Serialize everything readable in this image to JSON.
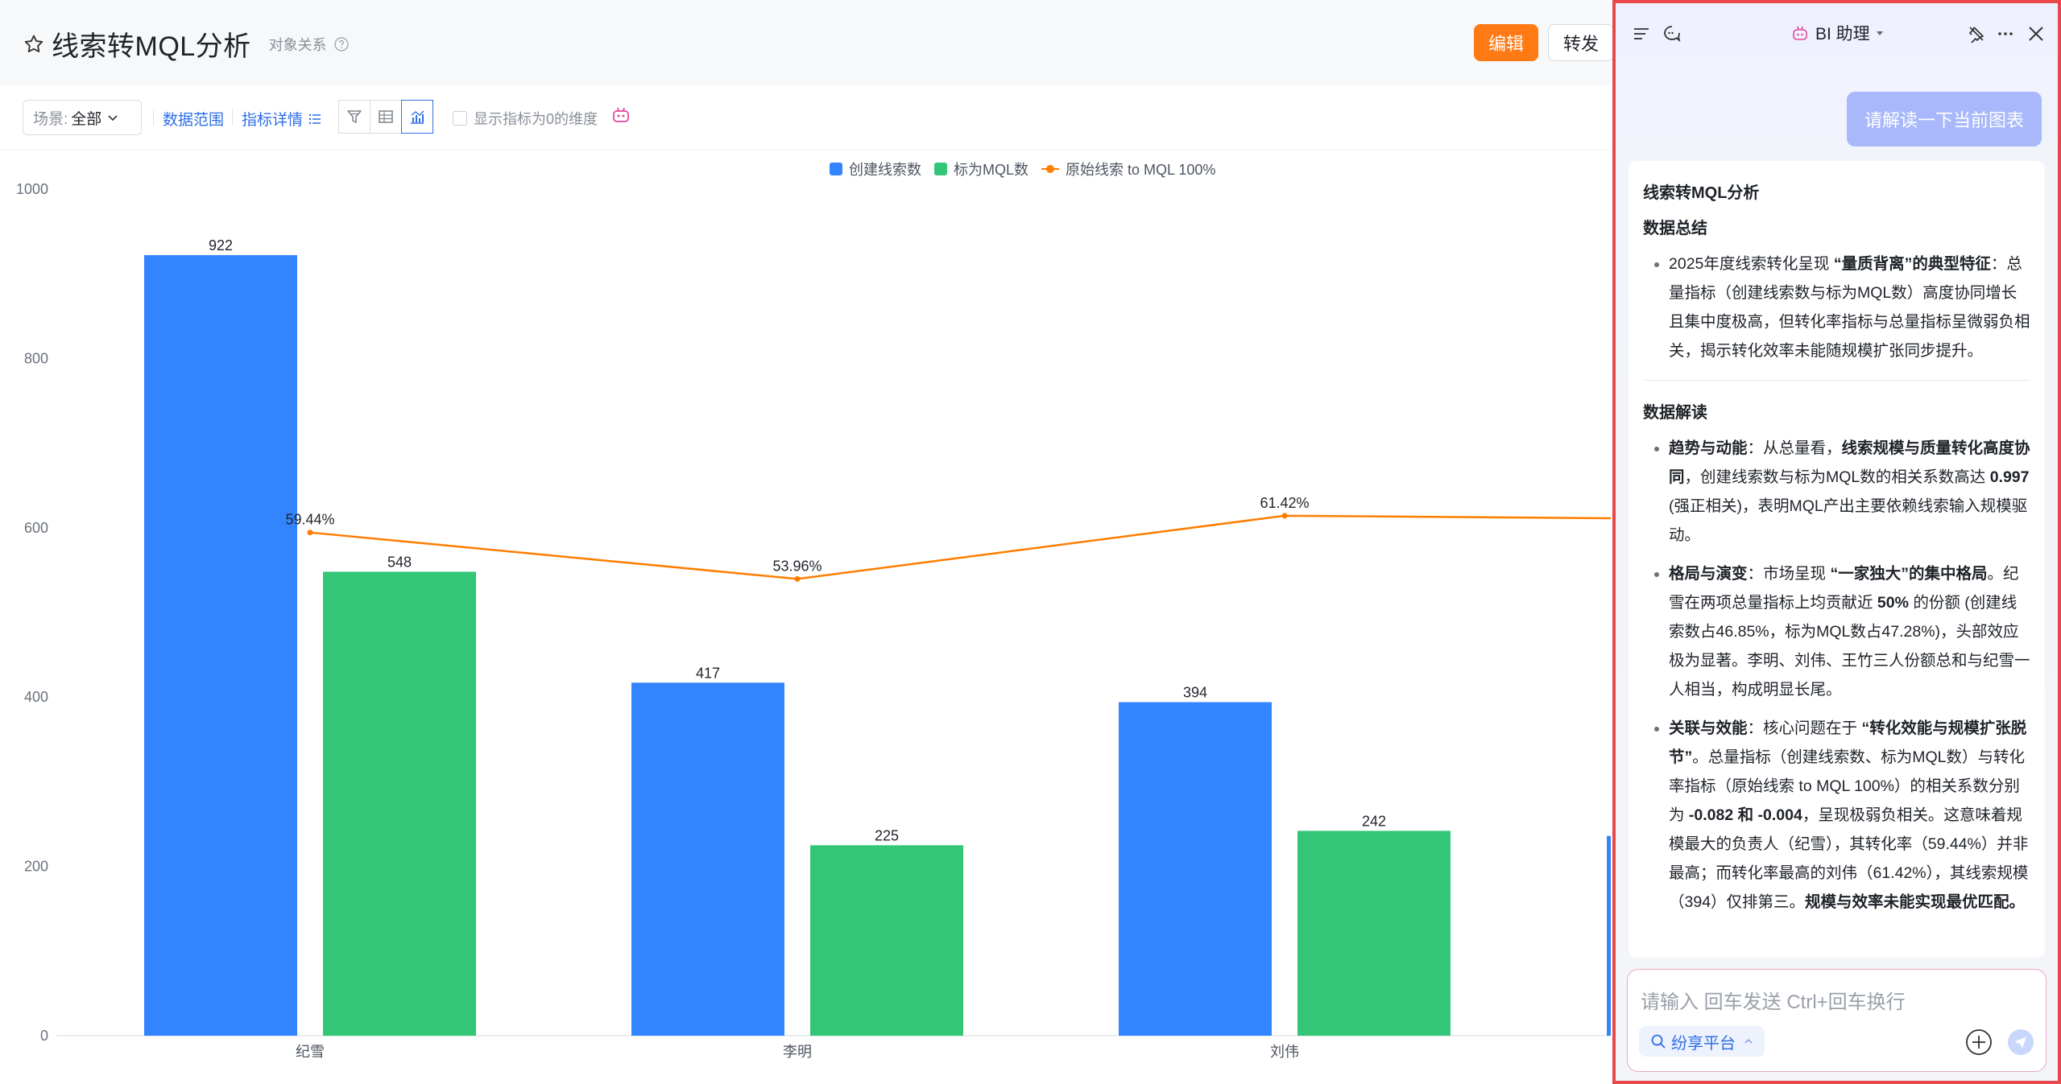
{
  "header": {
    "title": "线索转MQL分析",
    "sub_link": "对象关系",
    "edit_label": "编辑",
    "forward_label": "转发"
  },
  "toolbar": {
    "scene_label": "场景:",
    "scene_value": "全部",
    "data_range_label": "数据范围",
    "metric_detail_label": "指标详情",
    "show_zero_label": "显示指标为0的维度",
    "icons": [
      "filter-icon",
      "table-icon",
      "chart-icon",
      "bot-icon"
    ]
  },
  "chart_data": {
    "type": "bar",
    "categories": [
      "纪雪",
      "李明",
      "刘伟"
    ],
    "series": [
      {
        "name": "创建线索数",
        "type": "bar",
        "color": "#3385ff",
        "values": [
          922,
          417,
          394
        ]
      },
      {
        "name": "标为MQL数",
        "type": "bar",
        "color": "#33c677",
        "values": [
          548,
          225,
          242
        ]
      },
      {
        "name": "原始线索 to MQL 100%",
        "type": "line",
        "color": "#ff7d00",
        "values": [
          59.44,
          53.96,
          61.42
        ],
        "labels": [
          "59.44%",
          "53.96%",
          "61.42%"
        ]
      }
    ],
    "y_ticks": [
      "0",
      "200",
      "400",
      "600",
      "800",
      "1000"
    ],
    "ylim": [
      0,
      1000
    ],
    "legend_position": "top-center",
    "grid": false
  },
  "bi_panel": {
    "title": "BI 助理",
    "user_message": "请解读一下当前图表",
    "answer": {
      "title": "线索转MQL分析",
      "summary_heading": "数据总结",
      "summary_items": [
        {
          "pre": "2025年度线索转化呈现 ",
          "bold": "“量质背离”的典型特征",
          "post": "：总量指标（创建线索数与标为MQL数）高度协同增长且集中度极高，但转化率指标与总量指标呈微弱负相关，揭示转化效率未能随规模扩张同步提升。"
        }
      ],
      "interp_heading": "数据解读",
      "interp_items": [
        {
          "b1": "趋势与动能",
          "t1": "：从总量看，",
          "b2": "线索规模与质量转化高度协同",
          "t2": "，创建线索数与标为MQL数的相关系数高达 ",
          "b3": "0.997",
          "t3": " (强正相关)，表明MQL产出主要依赖线索输入规模驱动。",
          "b4": "",
          "t4": ""
        },
        {
          "b1": "格局与演变",
          "t1": "：市场呈现 ",
          "b2": "“一家独大”的集中格局",
          "t2": "。纪雪在两项总量指标上均贡献近 ",
          "b3": "50%",
          "t3": " 的份额 (创建线索数占46.85%，标为MQL数占47.28%)，头部效应极为显著。李明、刘伟、王竹三人份额总和与纪雪一人相当，构成明显长尾。",
          "b4": "",
          "t4": ""
        },
        {
          "b1": "关联与效能",
          "t1": "：核心问题在于 ",
          "b2": "“转化效能与规模扩张脱节”",
          "t2": "。总量指标（创建线索数、标为MQL数）与转化率指标（原始线索 to MQL 100%）的相关系数分别为 ",
          "b3": "-0.082 和 -0.004",
          "t3": "，呈现极弱负相关。这意味着规模最大的负责人（纪雪），其转化率（59.44%）并非最高；而转化率最高的刘伟（61.42%），其线索规模（394）仅排第三。",
          "b4": "规模与效率未能实现最优匹配。",
          "t4": ""
        }
      ]
    },
    "input_placeholder": "请输入 回车发送 Ctrl+回车换行",
    "platform_label": "纷享平台"
  }
}
